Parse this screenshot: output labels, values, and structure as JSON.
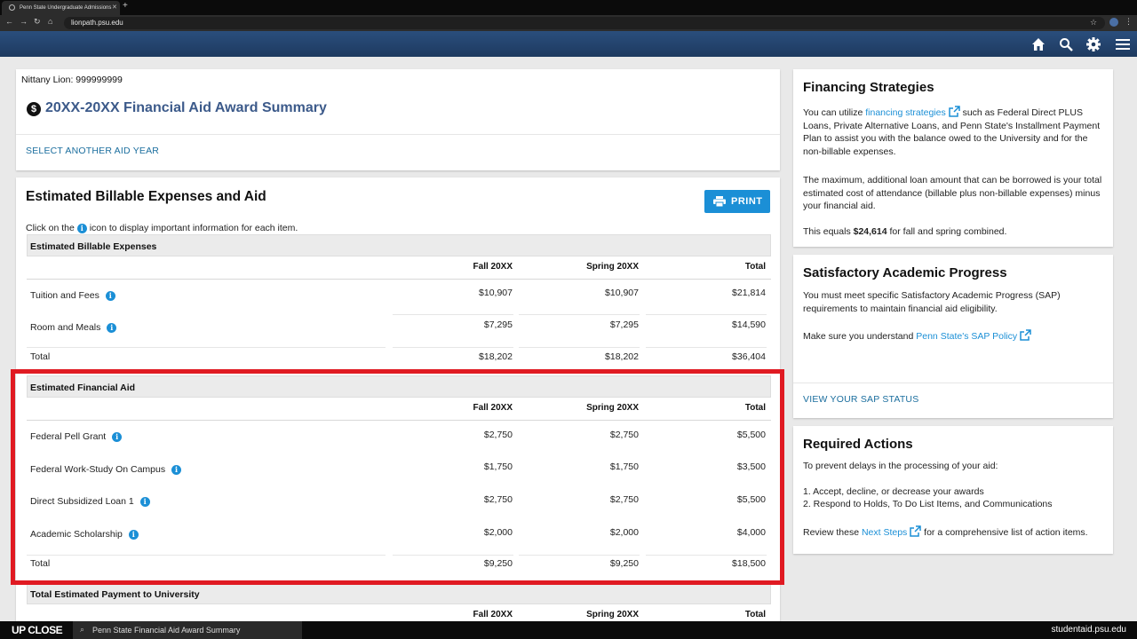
{
  "browser": {
    "tab_title": "Penn State Undergraduate Admissions",
    "new_tab": "+",
    "url": "lionpath.psu.edu"
  },
  "header": {
    "icons": [
      "home-icon",
      "search-icon",
      "settings-icon",
      "menu-icon"
    ]
  },
  "student": {
    "label": "Nittany Lion: 999999999",
    "award_title": "20XX-20XX  Financial Aid Award Summary",
    "select_year_link": "SELECT ANOTHER AID YEAR"
  },
  "billable": {
    "title": "Estimated Billable Expenses and Aid",
    "print_label": "PRINT",
    "instruction_before": "Click on the",
    "instruction_after": "icon to display important information for each item.",
    "expenses": {
      "heading": "Estimated Billable Expenses",
      "columns": [
        "Fall 20XX",
        "Spring 20XX",
        "Total"
      ],
      "rows": [
        {
          "label": "Tuition and Fees",
          "fall": "$10,907",
          "spring": "$10,907",
          "total": "$21,814"
        },
        {
          "label": "Room and Meals",
          "fall": "$7,295",
          "spring": "$7,295",
          "total": "$14,590"
        }
      ],
      "total": {
        "label": "Total",
        "fall": "$18,202",
        "spring": "$18,202",
        "total": "$36,404"
      }
    },
    "aid": {
      "heading": "Estimated Financial Aid",
      "columns": [
        "Fall 20XX",
        "Spring 20XX",
        "Total"
      ],
      "rows": [
        {
          "label": "Federal Pell Grant",
          "fall": "$2,750",
          "spring": "$2,750",
          "total": "$5,500"
        },
        {
          "label": "Federal Work-Study On Campus",
          "fall": "$1,750",
          "spring": "$1,750",
          "total": "$3,500"
        },
        {
          "label": "Direct Subsidized Loan 1",
          "fall": "$2,750",
          "spring": "$2,750",
          "total": "$5,500"
        },
        {
          "label": "Academic Scholarship",
          "fall": "$2,000",
          "spring": "$2,000",
          "total": "$4,000"
        }
      ],
      "total": {
        "label": "Total",
        "fall": "$9,250",
        "spring": "$9,250",
        "total": "$18,500"
      }
    },
    "payment": {
      "heading": "Total Estimated Payment to University",
      "columns": [
        "Fall 20XX",
        "Spring 20XX",
        "Total"
      ]
    }
  },
  "financing": {
    "title": "Financing Strategies",
    "p1_before": "You can utilize",
    "p1_link": "financing strategies",
    "p1_after": "such as Federal Direct PLUS Loans, Private Alternative Loans, and Penn State's Installment Payment Plan to assist you with the balance owed to the University and for the non-billable expenses.",
    "p2": "The maximum, additional loan amount that can be borrowed is your total estimated cost of attendance (billable plus non-billable expenses) minus your financial aid.",
    "p3_before": "This equals",
    "p3_amount": "$24,614",
    "p3_after": "for fall and spring combined."
  },
  "sap": {
    "title": "Satisfactory Academic Progress",
    "p1": "You must meet specific Satisfactory Academic Progress (SAP) requirements to maintain financial aid eligibility.",
    "p2_before": "Make sure you understand",
    "p2_link": "Penn State's SAP Policy",
    "status_link": "VIEW YOUR SAP STATUS"
  },
  "required": {
    "title": "Required Actions",
    "intro": "To prevent delays in the processing of your aid:",
    "item1": "1. Accept, decline, or decrease your awards",
    "item2": "2. Respond to Holds, To Do List Items, and Communications",
    "p_before": "Review these",
    "p_link": "Next Steps",
    "p_after": "for a comprehensive list of action items."
  },
  "bottombar": {
    "brand": "UP CLOSE",
    "video_title": "Penn State Financial Aid Award Summary",
    "domain": "studentaid.psu.edu"
  },
  "colors": {
    "header": "#1e3a5f",
    "accent": "#1b8fd6",
    "highlight": "#e01a22",
    "title_blue": "#3c5a8a"
  }
}
